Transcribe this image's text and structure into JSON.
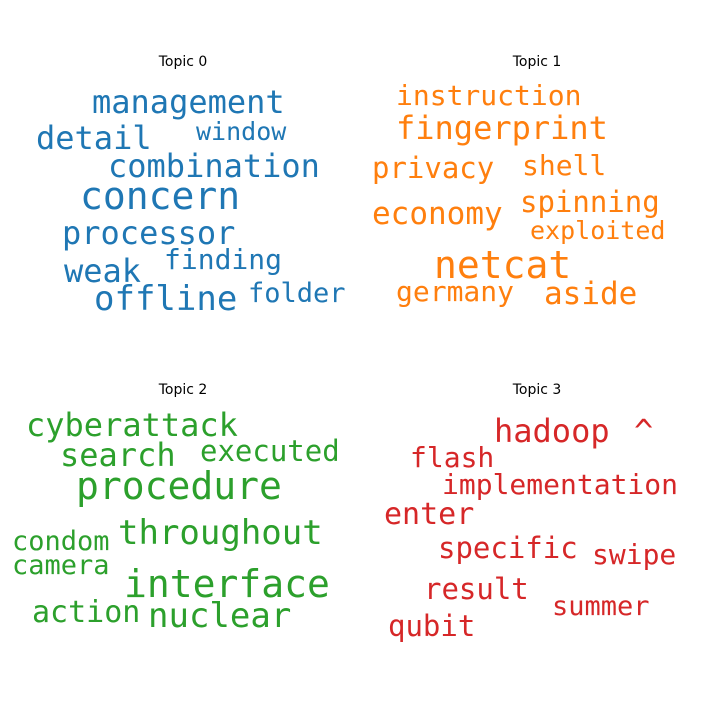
{
  "chart_data": [
    {
      "type": "wordcloud",
      "title": "Topic 0",
      "color": "#1f77b4",
      "words": [
        "management",
        "window",
        "detail",
        "combination",
        "concern",
        "processor",
        "finding",
        "weak",
        "offline",
        "folder"
      ]
    },
    {
      "type": "wordcloud",
      "title": "Topic 1",
      "color": "#ff7f0e",
      "words": [
        "instruction",
        "fingerprint",
        "privacy",
        "shell",
        "spinning",
        "economy",
        "exploited",
        "netcat",
        "germany",
        "aside"
      ]
    },
    {
      "type": "wordcloud",
      "title": "Topic 2",
      "color": "#2ca02c",
      "words": [
        "cyberattack",
        "search",
        "executed",
        "procedure",
        "throughout",
        "condom",
        "camera",
        "interface",
        "action",
        "nuclear"
      ]
    },
    {
      "type": "wordcloud",
      "title": "Topic 3",
      "color": "#d62728",
      "words": [
        "hadoop",
        "^",
        "flash",
        "implementation",
        "enter",
        "specific",
        "swipe",
        "result",
        "summer",
        "qubit"
      ]
    }
  ]
}
